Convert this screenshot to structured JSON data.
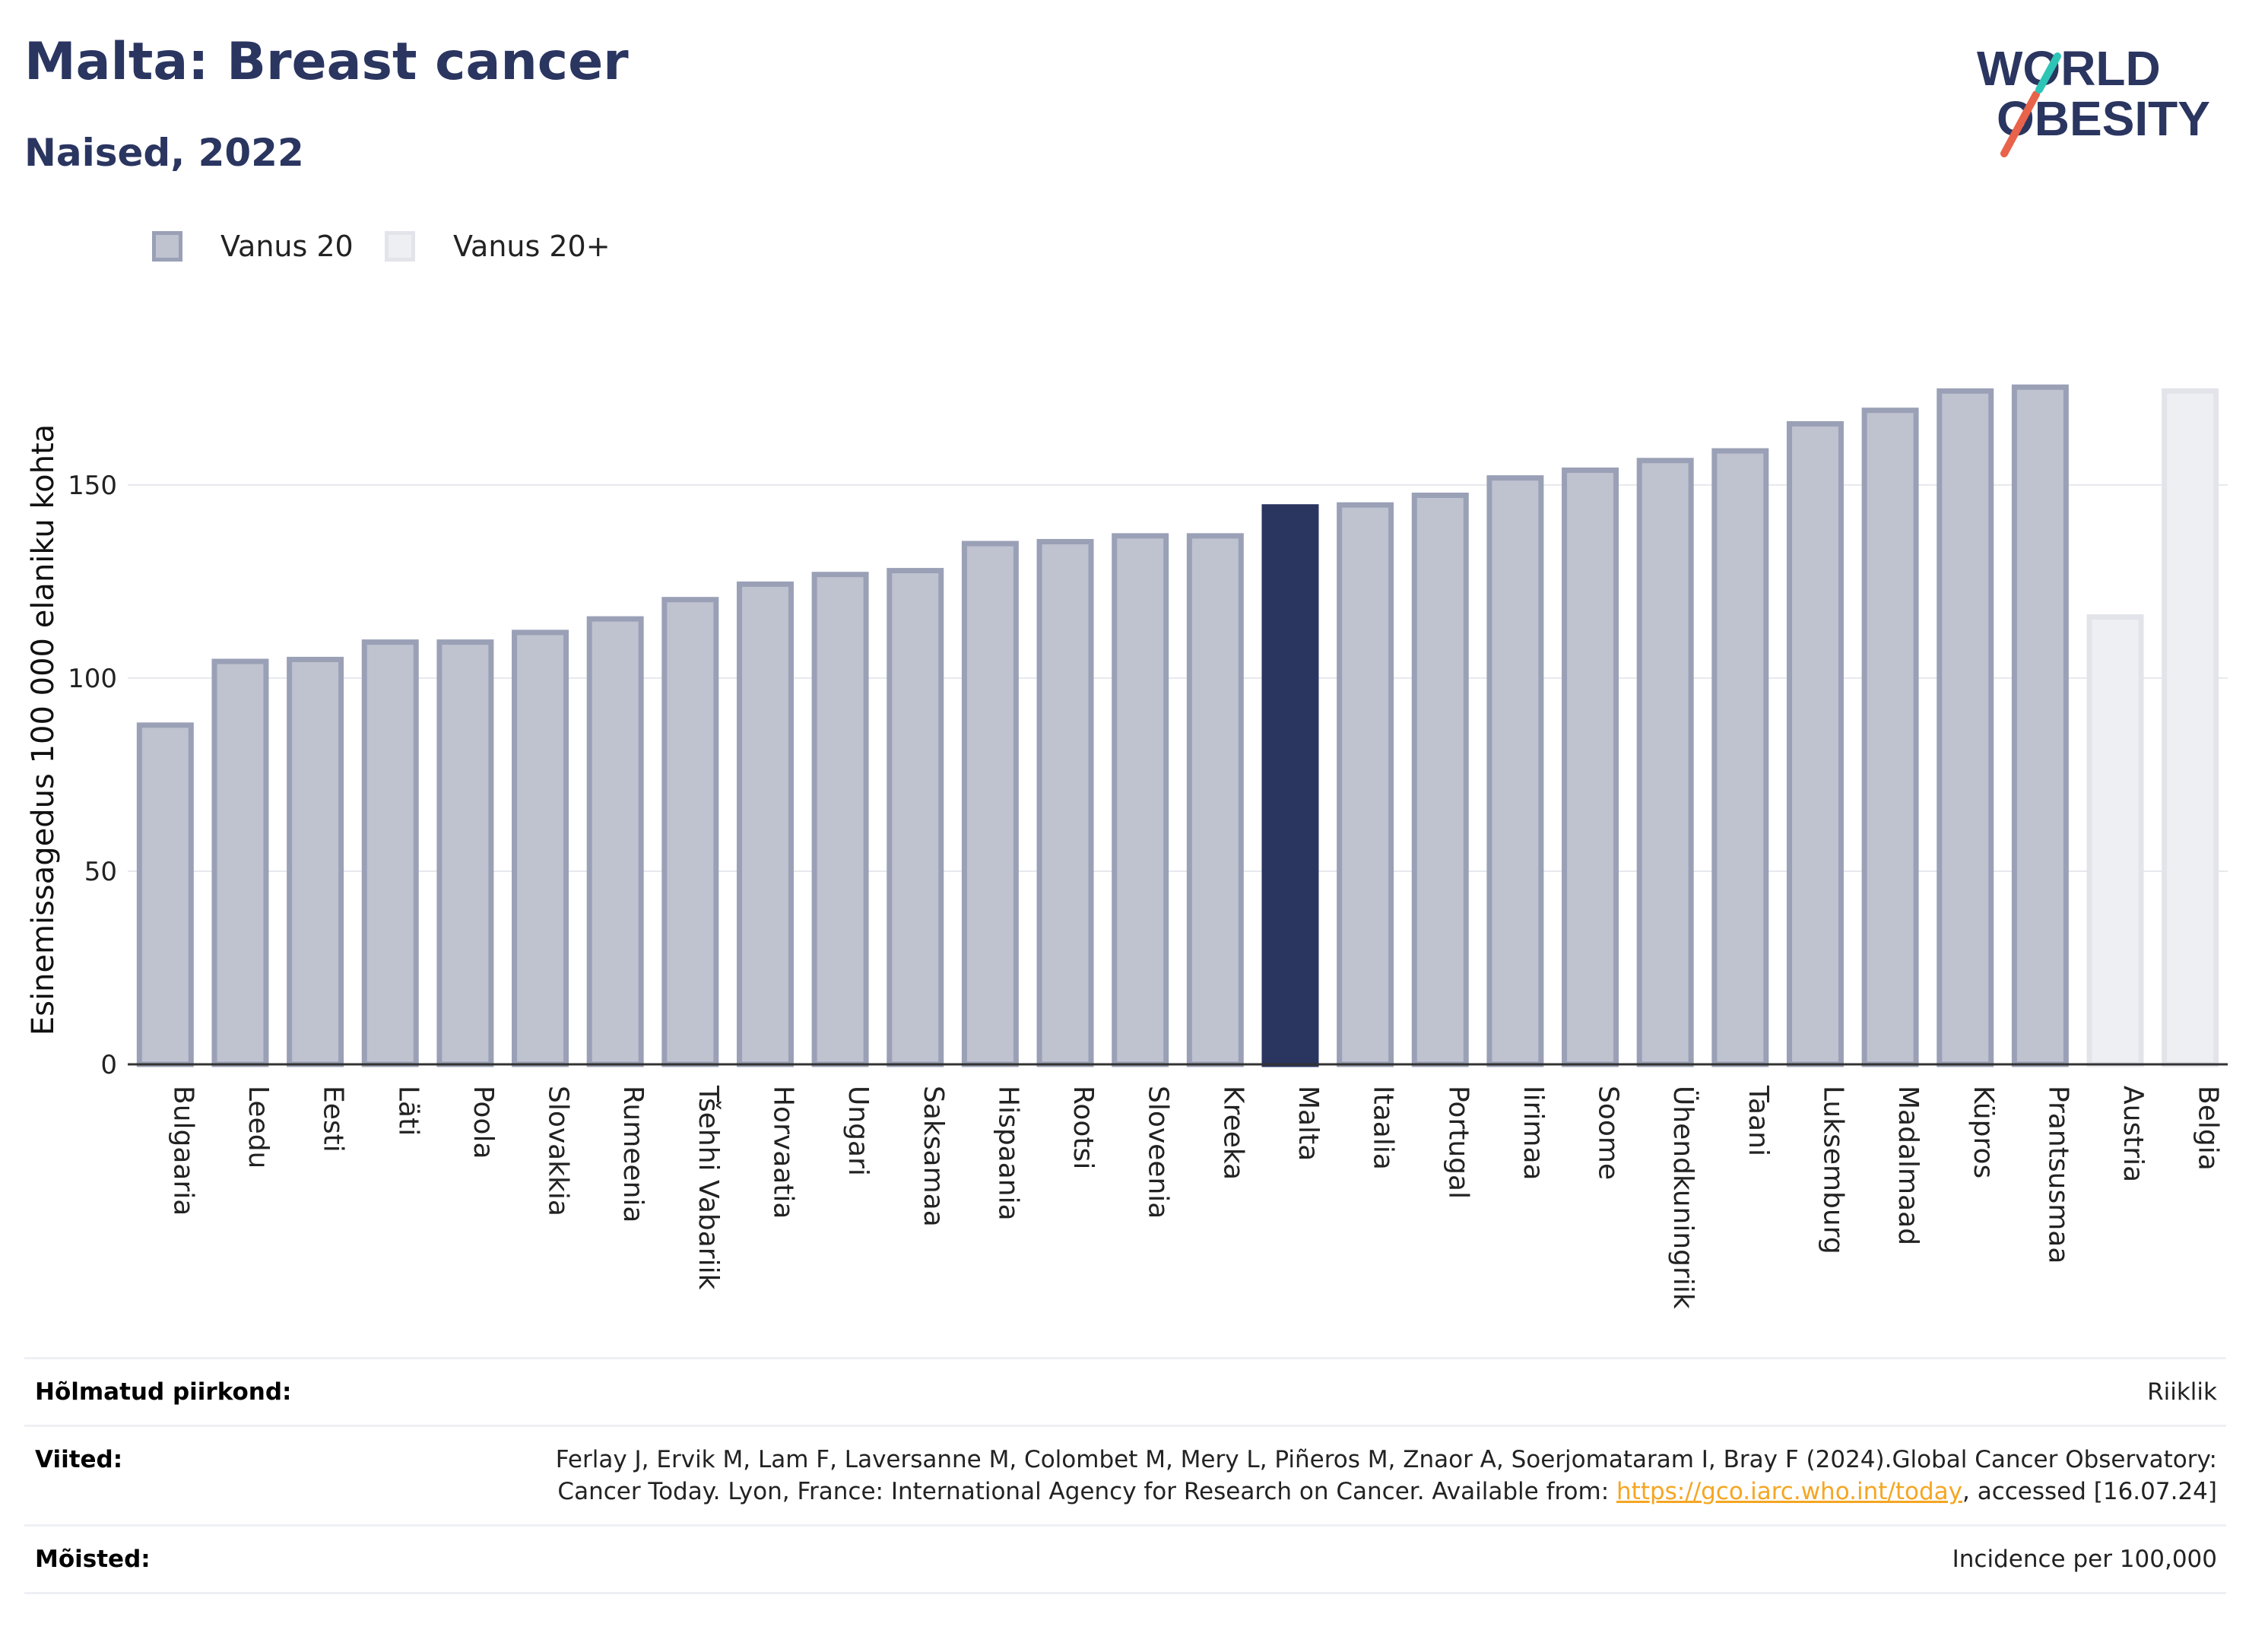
{
  "header": {
    "title": "Malta: Breast cancer",
    "subtitle": "Naised, 2022"
  },
  "logo": {
    "line1": "WORLD",
    "line2": "OBESITY"
  },
  "legend": [
    {
      "label": "Vanus 20",
      "fill": "#bfc2cf",
      "stroke": "#9aa0b6"
    },
    {
      "label": "Vanus 20+",
      "fill": "#eeeff3",
      "stroke": "#e3e4ea"
    }
  ],
  "colors": {
    "highlight": "#2a3560",
    "bar_fill": "#bfc2cf",
    "bar_stroke": "#9aa0b6",
    "alt_fill": "#eeeff3",
    "alt_stroke": "#e3e4ea"
  },
  "chart_data": {
    "type": "bar",
    "ylabel": "Esinemissagedus 100 000 elaniku kohta",
    "ylim": [
      0,
      185
    ],
    "yticks": [
      0,
      50,
      100,
      150
    ],
    "grid": true,
    "highlight": "Malta",
    "series": [
      {
        "name": "Vanus 20",
        "categories": [
          "Bulgaaria",
          "Leedu",
          "Eesti",
          "Läti",
          "Poola",
          "Slovakkia",
          "Rumeenia",
          "Tšehhi Vabariik",
          "Horvaatia",
          "Ungari",
          "Saksamaa",
          "Hispaania",
          "Rootsi",
          "Sloveenia",
          "Kreeka",
          "Malta",
          "Itaalia",
          "Portugal",
          "Iirimaa",
          "Soome",
          "Ühendkuningriik",
          "Taani",
          "Luksemburg",
          "Madalmaad",
          "Küpros",
          "Prantsusmaa"
        ],
        "values": [
          88.5,
          105,
          105.5,
          110,
          110,
          112.5,
          116,
          121,
          125,
          127.5,
          128.5,
          135.5,
          136,
          137.5,
          137.5,
          145,
          145.5,
          148,
          152.5,
          154.5,
          157,
          159.5,
          166.5,
          170,
          175,
          176
        ]
      },
      {
        "name": "Vanus 20+",
        "categories": [
          "Austria",
          "Belgia"
        ],
        "values": [
          116.5,
          175
        ]
      }
    ]
  },
  "footer": {
    "rows": [
      {
        "key": "Hõlmatud piirkond:",
        "value": "Riiklik"
      },
      {
        "key": "Viited:",
        "value_pre": "Ferlay J, Ervik M, Lam F, Laversanne M, Colombet M, Mery L, Piñeros M, Znaor A, Soerjomataram I, Bray F (2024).Global Cancer Observatory: Cancer Today. Lyon, France: International Agency for Research on Cancer. Available from: ",
        "link": "https://gco.iarc.who.int/today",
        "value_post": ", accessed [16.07.24]"
      },
      {
        "key": "Mõisted:",
        "value": "Incidence per 100,000"
      }
    ]
  }
}
